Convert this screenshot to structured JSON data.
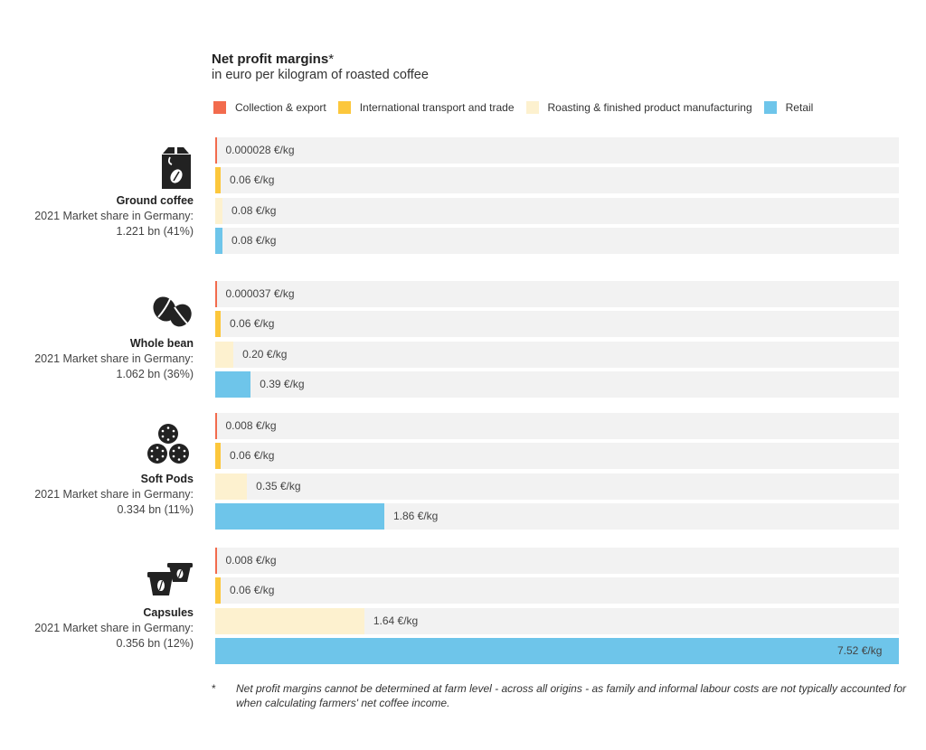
{
  "header": {
    "title": "Net profit margins",
    "title_mark": "*",
    "subtitle": "in euro per kilogram of roasted coffee"
  },
  "legend": [
    {
      "label": "Collection & export",
      "color": "#f26b4d"
    },
    {
      "label": "International transport and trade",
      "color": "#fcc73c"
    },
    {
      "label": "Roasting & finished product manufacturing",
      "color": "#fdf1cf"
    },
    {
      "label": "Retail",
      "color": "#6ec5ea"
    }
  ],
  "groups": [
    {
      "name": "Ground coffee",
      "share_line1": "2021 Market share in Germany:",
      "share_line2": "1.221 bn (41%)",
      "icon": "coffee-bag-icon"
    },
    {
      "name": "Whole bean",
      "share_line1": "2021 Market share in Germany:",
      "share_line2": "1.062 bn (36%)",
      "icon": "coffee-beans-icon"
    },
    {
      "name": "Soft Pods",
      "share_line1": "2021 Market share in Germany:",
      "share_line2": "0.334 bn (11%)",
      "icon": "soft-pods-icon"
    },
    {
      "name": "Capsules",
      "share_line1": "2021 Market share in Germany:",
      "share_line2": "0.356 bn (12%)",
      "icon": "capsules-icon"
    }
  ],
  "chart_data": {
    "type": "bar",
    "orientation": "horizontal",
    "title": "Net profit margins*",
    "subtitle": "in euro per kilogram of roasted coffee",
    "unit": "€/kg",
    "xlim": [
      0,
      7.52
    ],
    "legend_position": "top",
    "categories": [
      "Ground coffee",
      "Whole bean",
      "Soft Pods",
      "Capsules"
    ],
    "series": [
      {
        "name": "Collection & export",
        "color": "#f26b4d",
        "values": [
          2.8e-05,
          3.7e-05,
          0.008,
          0.008
        ],
        "labels": [
          "0.000028 €/kg",
          "0.000037 €/kg",
          "0.008 €/kg",
          "0.008 €/kg"
        ]
      },
      {
        "name": "International transport and trade",
        "color": "#fcc73c",
        "values": [
          0.06,
          0.06,
          0.06,
          0.06
        ],
        "labels": [
          "0.06 €/kg",
          "0.06 €/kg",
          "0.06 €/kg",
          "0.06 €/kg"
        ]
      },
      {
        "name": "Roasting & finished product manufacturing",
        "color": "#fdf1cf",
        "values": [
          0.08,
          0.2,
          0.35,
          1.64
        ],
        "labels": [
          "0.08 €/kg",
          "0.20 €/kg",
          "0.35 €/kg",
          "1.64 €/kg"
        ]
      },
      {
        "name": "Retail",
        "color": "#6ec5ea",
        "values": [
          0.08,
          0.39,
          1.86,
          7.52
        ],
        "labels": [
          "0.08 €/kg",
          "0.39 €/kg",
          "1.86 €/kg",
          "7.52 €/kg"
        ]
      }
    ]
  },
  "footnote": {
    "mark": "*",
    "text": "Net profit margins cannot be determined at farm level - across all origins - as family and informal labour costs are not typically accounted for when calculating farmers' net coffee income."
  }
}
